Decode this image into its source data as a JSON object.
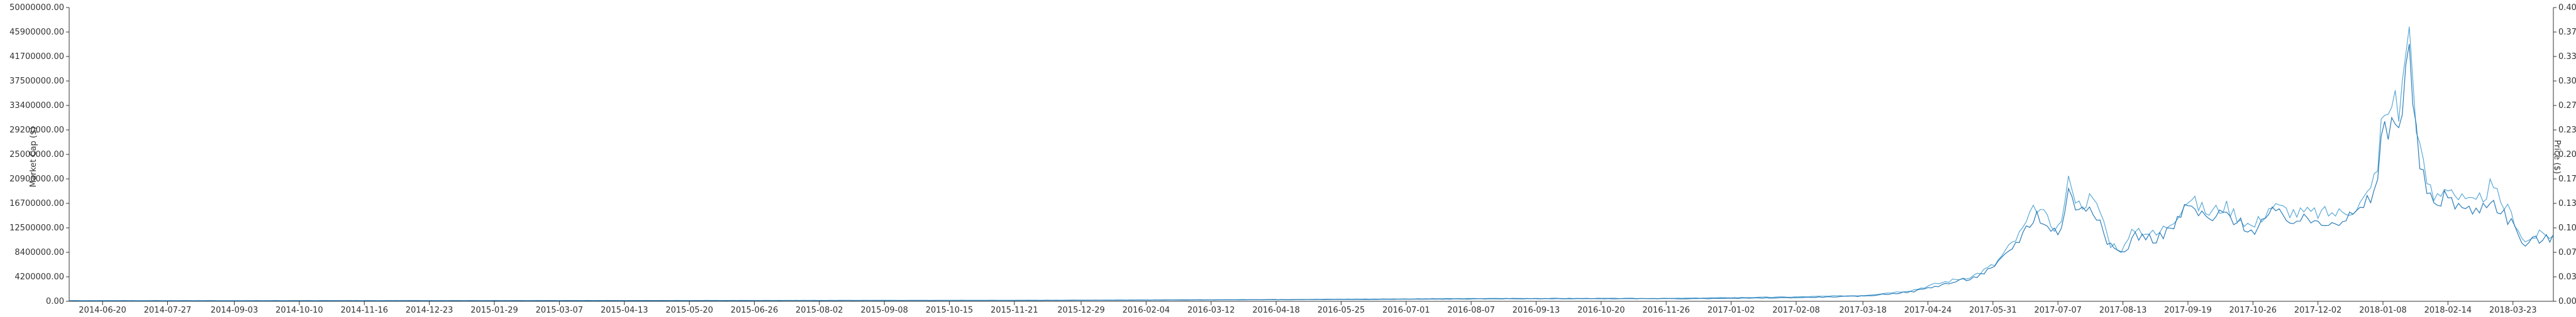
{
  "chart_data": {
    "type": "line",
    "title": "",
    "xlabel": "",
    "ylabel_left": "Market Cap ($)",
    "ylabel_right": "Price ($)",
    "x_ticks": [
      "2014-06-20",
      "2014-07-27",
      "2014-09-03",
      "2014-10-10",
      "2014-11-16",
      "2014-12-23",
      "2015-01-29",
      "2015-03-07",
      "2015-04-13",
      "2015-05-20",
      "2015-06-26",
      "2015-08-02",
      "2015-09-08",
      "2015-10-15",
      "2015-11-21",
      "2015-12-29",
      "2016-02-04",
      "2016-03-12",
      "2016-04-18",
      "2016-05-25",
      "2016-07-01",
      "2016-08-07",
      "2016-09-13",
      "2016-10-20",
      "2016-11-26",
      "2017-01-02",
      "2017-02-08",
      "2017-03-18",
      "2017-04-24",
      "2017-05-31",
      "2017-07-07",
      "2017-08-13",
      "2017-09-19",
      "2017-10-26",
      "2017-12-02",
      "2018-01-08",
      "2018-02-14",
      "2018-03-23"
    ],
    "y_left_ticks": [
      "0.00",
      "4200000.00",
      "8400000.00",
      "12500000.00",
      "16700000.00",
      "20900000.00",
      "25000000.00",
      "29200000.00",
      "33400000.00",
      "37500000.00",
      "41700000.00",
      "45900000.00",
      "50000000.00"
    ],
    "y_right_ticks": [
      "0.00",
      "0.03",
      "0.07",
      "0.10",
      "0.13",
      "0.17",
      "0.20",
      "0.23",
      "0.27",
      "0.30",
      "0.33",
      "0.37",
      "0.40"
    ],
    "y_left_range": [
      0,
      50000000
    ],
    "y_right_range": [
      0,
      0.4
    ],
    "x_range": [
      "2014-06-01",
      "2018-04-15"
    ],
    "grid": false,
    "series": [
      {
        "color": "#5aa9d6",
        "axis": "right",
        "points": [
          [
            "2014-06-01",
            0.001
          ],
          [
            "2014-09-01",
            0.001
          ],
          [
            "2015-01-01",
            0.001
          ],
          [
            "2015-06-01",
            0.0012
          ],
          [
            "2015-12-01",
            0.0015
          ],
          [
            "2016-03-01",
            0.002
          ],
          [
            "2016-06-01",
            0.003
          ],
          [
            "2016-09-01",
            0.004
          ],
          [
            "2016-12-01",
            0.004
          ],
          [
            "2017-01-02",
            0.005
          ],
          [
            "2017-02-08",
            0.006
          ],
          [
            "2017-03-18",
            0.008
          ],
          [
            "2017-04-15",
            0.015
          ],
          [
            "2017-05-01",
            0.025
          ],
          [
            "2017-05-20",
            0.035
          ],
          [
            "2017-06-01",
            0.05
          ],
          [
            "2017-06-15",
            0.09
          ],
          [
            "2017-06-25",
            0.13
          ],
          [
            "2017-07-01",
            0.11
          ],
          [
            "2017-07-07",
            0.1
          ],
          [
            "2017-07-10",
            0.12
          ],
          [
            "2017-07-14",
            0.175
          ],
          [
            "2017-07-18",
            0.13
          ],
          [
            "2017-07-25",
            0.14
          ],
          [
            "2017-08-01",
            0.12
          ],
          [
            "2017-08-05",
            0.08
          ],
          [
            "2017-08-13",
            0.07
          ],
          [
            "2017-08-20",
            0.1
          ],
          [
            "2017-09-01",
            0.09
          ],
          [
            "2017-09-10",
            0.11
          ],
          [
            "2017-09-19",
            0.14
          ],
          [
            "2017-10-01",
            0.12
          ],
          [
            "2017-10-10",
            0.13
          ],
          [
            "2017-10-26",
            0.1
          ],
          [
            "2017-11-05",
            0.13
          ],
          [
            "2017-11-20",
            0.12
          ],
          [
            "2017-12-02",
            0.12
          ],
          [
            "2017-12-15",
            0.12
          ],
          [
            "2017-12-25",
            0.13
          ],
          [
            "2018-01-01",
            0.15
          ],
          [
            "2018-01-05",
            0.19
          ],
          [
            "2018-01-08",
            0.26
          ],
          [
            "2018-01-12",
            0.24
          ],
          [
            "2018-01-14",
            0.3
          ],
          [
            "2018-01-17",
            0.26
          ],
          [
            "2018-01-20",
            0.3
          ],
          [
            "2018-01-22",
            0.4
          ],
          [
            "2018-01-24",
            0.33
          ],
          [
            "2018-01-28",
            0.22
          ],
          [
            "2018-02-01",
            0.17
          ],
          [
            "2018-02-06",
            0.14
          ],
          [
            "2018-02-14",
            0.16
          ],
          [
            "2018-02-20",
            0.14
          ],
          [
            "2018-03-01",
            0.13
          ],
          [
            "2018-03-10",
            0.155
          ],
          [
            "2018-03-23",
            0.115
          ],
          [
            "2018-03-30",
            0.08
          ],
          [
            "2018-04-05",
            0.09
          ],
          [
            "2018-04-15",
            0.09
          ]
        ]
      },
      {
        "color": "#2b7cb8",
        "axis": "right",
        "points": [
          [
            "2014-06-01",
            0.0008
          ],
          [
            "2014-09-01",
            0.0008
          ],
          [
            "2015-01-01",
            0.0009
          ],
          [
            "2015-06-01",
            0.001
          ],
          [
            "2015-12-01",
            0.0012
          ],
          [
            "2016-03-01",
            0.0018
          ],
          [
            "2016-06-01",
            0.0025
          ],
          [
            "2016-09-01",
            0.0035
          ],
          [
            "2016-12-01",
            0.0035
          ],
          [
            "2017-01-02",
            0.004
          ],
          [
            "2017-02-08",
            0.005
          ],
          [
            "2017-03-18",
            0.007
          ],
          [
            "2017-04-15",
            0.013
          ],
          [
            "2017-05-01",
            0.022
          ],
          [
            "2017-05-20",
            0.032
          ],
          [
            "2017-06-01",
            0.046
          ],
          [
            "2017-06-15",
            0.085
          ],
          [
            "2017-06-25",
            0.12
          ],
          [
            "2017-07-01",
            0.1
          ],
          [
            "2017-07-07",
            0.095
          ],
          [
            "2017-07-10",
            0.11
          ],
          [
            "2017-07-14",
            0.16
          ],
          [
            "2017-07-18",
            0.12
          ],
          [
            "2017-07-25",
            0.13
          ],
          [
            "2017-08-01",
            0.11
          ],
          [
            "2017-08-05",
            0.075
          ],
          [
            "2017-08-13",
            0.065
          ],
          [
            "2017-08-20",
            0.09
          ],
          [
            "2017-09-01",
            0.085
          ],
          [
            "2017-09-10",
            0.1
          ],
          [
            "2017-09-19",
            0.13
          ],
          [
            "2017-10-01",
            0.11
          ],
          [
            "2017-10-10",
            0.12
          ],
          [
            "2017-10-26",
            0.095
          ],
          [
            "2017-11-05",
            0.12
          ],
          [
            "2017-11-20",
            0.11
          ],
          [
            "2017-12-02",
            0.11
          ],
          [
            "2017-12-15",
            0.11
          ],
          [
            "2017-12-25",
            0.12
          ],
          [
            "2018-01-01",
            0.14
          ],
          [
            "2018-01-05",
            0.17
          ],
          [
            "2018-01-08",
            0.24
          ],
          [
            "2018-01-12",
            0.22
          ],
          [
            "2018-01-14",
            0.27
          ],
          [
            "2018-01-17",
            0.24
          ],
          [
            "2018-01-20",
            0.27
          ],
          [
            "2018-01-22",
            0.36
          ],
          [
            "2018-01-24",
            0.3
          ],
          [
            "2018-01-28",
            0.2
          ],
          [
            "2018-02-01",
            0.155
          ],
          [
            "2018-02-06",
            0.13
          ],
          [
            "2018-02-14",
            0.145
          ],
          [
            "2018-02-20",
            0.13
          ],
          [
            "2018-03-01",
            0.12
          ],
          [
            "2018-03-10",
            0.14
          ],
          [
            "2018-03-23",
            0.105
          ],
          [
            "2018-03-30",
            0.075
          ],
          [
            "2018-04-05",
            0.085
          ],
          [
            "2018-04-15",
            0.085
          ]
        ]
      }
    ]
  }
}
